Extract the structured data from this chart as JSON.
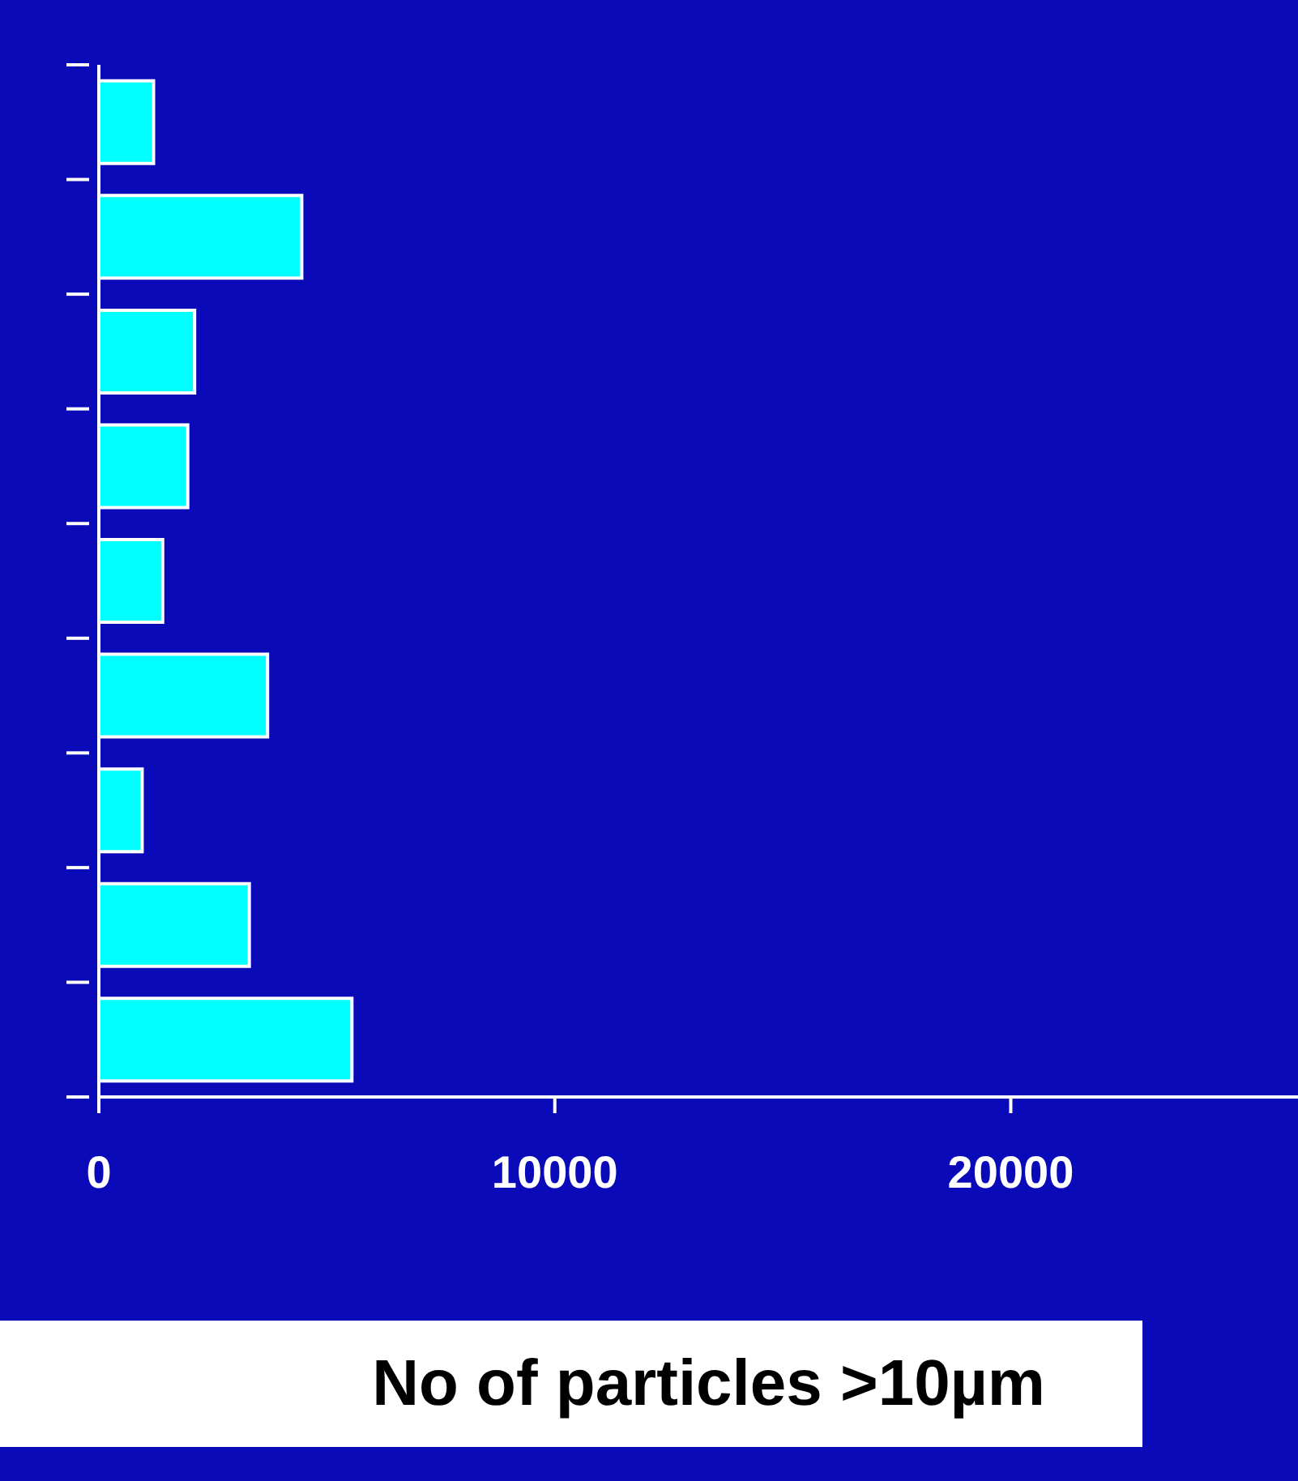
{
  "chart_data": {
    "type": "bar",
    "orientation": "horizontal",
    "xlabel": "No of particles >10µm",
    "categories": [
      null,
      null,
      null,
      null,
      null,
      null,
      null,
      null,
      null
    ],
    "values": [
      1200,
      4450,
      2100,
      1950,
      1400,
      3700,
      950,
      3300,
      5550
    ],
    "color": "#00ffff",
    "xlim": [
      0,
      26300
    ],
    "xticks": [
      0,
      10000,
      20000
    ],
    "tick_labels": "x",
    "grid": false
  }
}
